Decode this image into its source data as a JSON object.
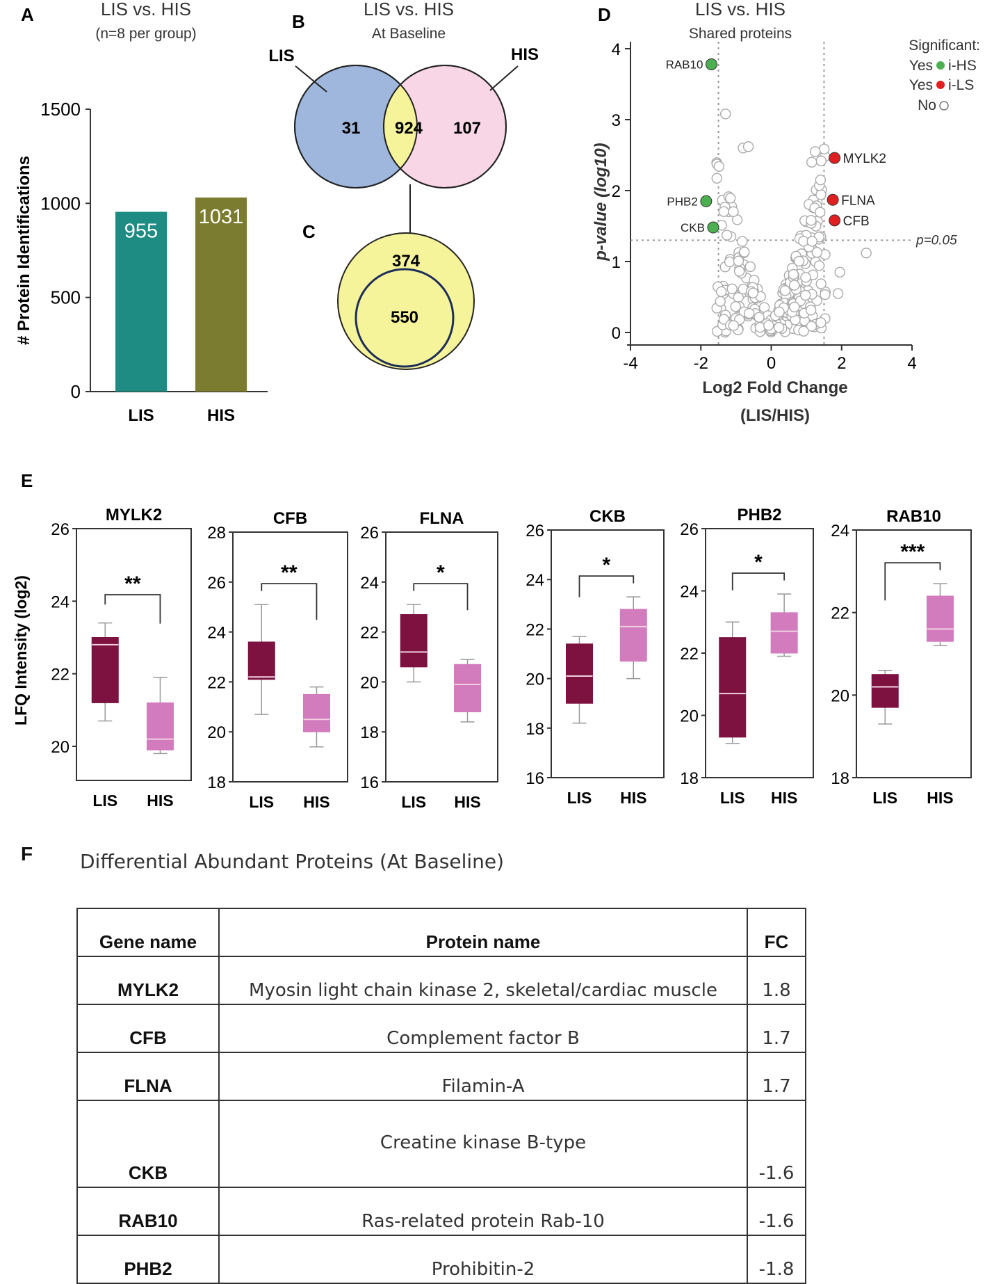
{
  "colors": {
    "teal": "#1e8c82",
    "olive": "#7b7c2f",
    "lis_box": "#7d1240",
    "his_box": "#d27bbd",
    "venn_blue": "#9fb6dd",
    "venn_pink": "#f8d6e6",
    "venn_yellow": "#f6f49a",
    "green": "#4caf50",
    "red": "#e02020"
  },
  "panelA": {
    "letter": "A",
    "title": "LIS vs. HIS",
    "subtitle": "(n=8 per group)"
  },
  "panelB": {
    "letter": "B",
    "title": "LIS vs. HIS",
    "subtitle": "At Baseline"
  },
  "panelC": {
    "letter": "C"
  },
  "panelD": {
    "letter": "D",
    "title": "LIS vs. HIS",
    "subtitle": "Shared proteins",
    "legend_title": "Significant:",
    "legend_yes_green": "Yes",
    "legend_hs": "i-HS",
    "legend_yes_red": "Yes",
    "legend_ls": "i-LS",
    "legend_no": "No"
  },
  "panelE": {
    "letter": "E"
  },
  "panelF": {
    "letter": "F",
    "title": "Differential Abundant Proteins (At Baseline)",
    "headers": {
      "gene": "Gene name",
      "protein": "Protein name",
      "fc": "FC"
    },
    "rows": [
      {
        "gene": "MYLK2",
        "protein": "Myosin light chain kinase 2, skeletal/cardiac muscle",
        "fc": "1.8"
      },
      {
        "gene": "CFB",
        "protein": "Complement  factor B",
        "fc": "1.7"
      },
      {
        "gene": "FLNA",
        "protein": "Filamin-A",
        "fc": "1.7"
      },
      {
        "gene": "CKB",
        "protein": "Creatine kinase B-type",
        "fc": "-1.6"
      },
      {
        "gene": "RAB10",
        "protein": "Ras-related protein Rab-10",
        "fc": "-1.6"
      },
      {
        "gene": "PHB2",
        "protein": "Prohibitin-2",
        "fc": "-1.8"
      }
    ]
  },
  "chart_data": [
    {
      "type": "bar",
      "id": "A",
      "title": "LIS vs. HIS",
      "subtitle": "(n=8 per group)",
      "categories": [
        "LIS",
        "HIS"
      ],
      "values": [
        955,
        1031
      ],
      "value_labels": [
        "955",
        "1031"
      ],
      "ylabel": "# Protein Identifications",
      "ylim": [
        0,
        1500
      ],
      "yticks": [
        "0",
        "500",
        "1000",
        "1500"
      ]
    },
    {
      "type": "venn",
      "id": "B",
      "sets": [
        "LIS",
        "HIS"
      ],
      "only_a": "31",
      "shared": "924",
      "only_b": "107"
    },
    {
      "type": "venn",
      "id": "C",
      "outer": "374",
      "inner": "550"
    },
    {
      "type": "scatter",
      "id": "D",
      "xlabel": "Log2 Fold Change",
      "xlabel2": "(LIS/HIS)",
      "ylabel": "p-value (log10)",
      "xlim": [
        -4,
        4
      ],
      "ylim": [
        0,
        4
      ],
      "xticks": [
        "-4",
        "-2",
        "0",
        "2",
        "4"
      ],
      "yticks": [
        "0",
        "1",
        "2",
        "3",
        "4"
      ],
      "threshold_x": 1.5,
      "threshold_y": 1.3,
      "threshold_label": "p=0.05",
      "labeled_points": [
        {
          "name": "RAB10",
          "x": -1.7,
          "y": 3.78,
          "group": "i-HS"
        },
        {
          "name": "PHB2",
          "x": -1.85,
          "y": 1.85,
          "group": "i-HS"
        },
        {
          "name": "CKB",
          "x": -1.65,
          "y": 1.48,
          "group": "i-HS"
        },
        {
          "name": "MYLK2",
          "x": 1.8,
          "y": 2.46,
          "group": "i-LS"
        },
        {
          "name": "FLNA",
          "x": 1.75,
          "y": 1.87,
          "group": "i-LS"
        },
        {
          "name": "CFB",
          "x": 1.8,
          "y": 1.58,
          "group": "i-LS"
        }
      ]
    },
    {
      "type": "box",
      "id": "E",
      "ylabel": "LFQ Intensity (log2)",
      "categories": [
        "LIS",
        "HIS"
      ],
      "panels": [
        {
          "title": "MYLK2",
          "ylim": [
            19.3,
            26
          ],
          "yticks": [
            "20",
            "22",
            "24",
            "26"
          ],
          "yvals": [
            20,
            22,
            24,
            26
          ],
          "sig": "**",
          "boxes": [
            {
              "min": 20.7,
              "q1": 21.2,
              "med": 22.8,
              "q3": 23.0,
              "max": 23.4
            },
            {
              "min": 19.8,
              "q1": 19.9,
              "med": 20.2,
              "q3": 21.2,
              "max": 21.9
            }
          ]
        },
        {
          "title": "CFB",
          "ylim": [
            18,
            28
          ],
          "yticks": [
            "18",
            "20",
            "22",
            "24",
            "26",
            "28"
          ],
          "yvals": [
            18,
            20,
            22,
            24,
            26,
            28
          ],
          "sig": "**",
          "boxes": [
            {
              "min": 20.7,
              "q1": 22.1,
              "med": 22.2,
              "q3": 23.6,
              "max": 25.1
            },
            {
              "min": 19.4,
              "q1": 20.0,
              "med": 20.5,
              "q3": 21.5,
              "max": 21.8
            }
          ]
        },
        {
          "title": "FLNA",
          "ylim": [
            16,
            26
          ],
          "yticks": [
            "16",
            "18",
            "20",
            "22",
            "24",
            "26"
          ],
          "yvals": [
            16,
            18,
            20,
            22,
            24,
            26
          ],
          "sig": "*",
          "boxes": [
            {
              "min": 20.0,
              "q1": 20.6,
              "med": 21.2,
              "q3": 22.7,
              "max": 23.1
            },
            {
              "min": 18.4,
              "q1": 18.8,
              "med": 19.9,
              "q3": 20.7,
              "max": 20.9
            }
          ]
        },
        {
          "title": "CKB",
          "ylim": [
            16,
            26
          ],
          "yticks": [
            "16",
            "18",
            "20",
            "22",
            "24",
            "26"
          ],
          "yvals": [
            16,
            18,
            20,
            22,
            24,
            26
          ],
          "sig": "*",
          "boxes": [
            {
              "min": 18.2,
              "q1": 19.0,
              "med": 20.1,
              "q3": 21.4,
              "max": 21.7
            },
            {
              "min": 20.0,
              "q1": 20.7,
              "med": 22.1,
              "q3": 22.8,
              "max": 23.3
            }
          ]
        },
        {
          "title": "PHB2",
          "ylim": [
            18,
            26
          ],
          "yticks": [
            "18",
            "20",
            "22",
            "24",
            "26"
          ],
          "yvals": [
            18,
            20,
            22,
            24,
            26
          ],
          "sig": "*",
          "boxes": [
            {
              "min": 19.1,
              "q1": 19.3,
              "med": 20.7,
              "q3": 22.5,
              "max": 23.0
            },
            {
              "min": 21.9,
              "q1": 22.0,
              "med": 22.7,
              "q3": 23.3,
              "max": 23.9
            }
          ]
        },
        {
          "title": "RAB10",
          "ylim": [
            18,
            24
          ],
          "yticks": [
            "18",
            "20",
            "22",
            "24"
          ],
          "yvals": [
            18,
            20,
            22,
            24
          ],
          "sig": "***",
          "boxes": [
            {
              "min": 19.3,
              "q1": 19.7,
              "med": 20.2,
              "q3": 20.5,
              "max": 20.6
            },
            {
              "min": 21.2,
              "q1": 21.3,
              "med": 21.6,
              "q3": 22.4,
              "max": 22.7
            }
          ]
        }
      ]
    }
  ]
}
